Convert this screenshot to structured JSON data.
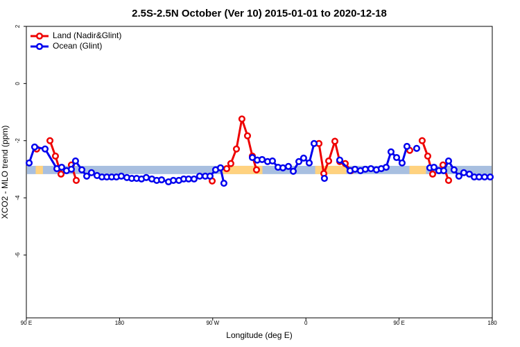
{
  "chart_data": {
    "type": "line",
    "title": "2.5S-2.5N October (Ver 10)   2015-01-01 to 2020-12-18",
    "x_label": "Longitude (deg E)",
    "y_label": "XCO2 - MLO trend (ppm)",
    "xlim": [
      90,
      540
    ],
    "xticks": [
      {
        "value": 90,
        "label": "90 E"
      },
      180,
      {
        "value": 270,
        "label": "90 W"
      },
      {
        "value": 360,
        "label": "0"
      },
      {
        "value": 450,
        "label": "90 E"
      },
      {
        "value": 540,
        "label": "180"
      }
    ],
    "ylim": [
      -8.2,
      2
    ],
    "yticks": [
      2,
      0,
      -2,
      -4,
      -6
    ],
    "legend": "top-left",
    "band": {
      "ylim": [
        -3.17,
        -2.88
      ],
      "ocean_color": "#a8bfe0",
      "land_color": "#ffd27f",
      "land_segments": [
        [
          99,
          106
        ],
        [
          279,
          318
        ],
        [
          369,
          399
        ],
        [
          460,
          476
        ]
      ]
    },
    "series": [
      {
        "name": "Land (Nadir&Glint)",
        "color": "#ee0000",
        "x": [
          100.0,
          null,
          112.8,
          118.1,
          123.5,
          null,
          133.5,
          138.2,
          null,
          269.5,
          null,
          283.5,
          287.5,
          292.9,
          298.2,
          303.6,
          308.3,
          312.3,
          null,
          372.6,
          377.3,
          382.0,
          388.0,
          392.7,
          398.0,
          403.4,
          null,
          460.3,
          null,
          472.3,
          477.7,
          482.4,
          null,
          492.4,
          497.8
        ],
        "values": [
          -2.29,
          null,
          -2.0,
          -2.54,
          -3.17,
          null,
          -2.85,
          -3.39,
          null,
          -3.41,
          null,
          -2.98,
          -2.8,
          -2.29,
          -1.24,
          -1.83,
          -2.54,
          -3.02,
          null,
          -2.1,
          -3.15,
          -2.71,
          -2.02,
          -2.73,
          -2.8,
          -3.05,
          null,
          -2.34,
          null,
          -2.0,
          -2.54,
          -3.17,
          null,
          -2.85,
          -3.39
        ]
      },
      {
        "name": "Ocean (Glint)",
        "color": "#0000ee",
        "x": [
          92.7,
          98.0,
          108.1,
          119.5,
          124.1,
          128.8,
          133.5,
          137.5,
          143.6,
          148.3,
          152.9,
          158.3,
          163.0,
          167.7,
          172.4,
          177.0,
          181.7,
          187.1,
          191.8,
          196.5,
          201.2,
          205.8,
          211.2,
          215.9,
          220.6,
          227.3,
          232.0,
          237.3,
          242.0,
          246.7,
          252.0,
          257.4,
          262.8,
          267.4,
          272.8,
          277.5,
          280.8,
          null,
          308.3,
          313.0,
          317.7,
          323.0,
          327.7,
          333.1,
          337.8,
          343.1,
          347.8,
          353.2,
          357.8,
          363.2,
          367.9,
          null,
          377.9,
          null,
          392.7,
          402.7,
          407.4,
          412.7,
          417.4,
          422.8,
          428.1,
          432.8,
          437.5,
          442.2,
          447.6,
          452.9,
          457.6,
          null,
          467.0,
          null,
          479.7,
          483.7,
          488.4,
          493.1,
          497.8,
          503.1,
          507.8,
          512.5,
          517.9,
          522.6,
          527.3,
          532.6,
          538.0
        ],
        "values": [
          -2.78,
          -2.22,
          -2.29,
          -2.98,
          -2.93,
          -3.05,
          -3.0,
          -2.71,
          -3.02,
          -3.24,
          -3.12,
          -3.22,
          -3.27,
          -3.27,
          -3.27,
          -3.27,
          -3.24,
          -3.29,
          -3.32,
          -3.32,
          -3.34,
          -3.29,
          -3.34,
          -3.39,
          -3.37,
          -3.44,
          -3.39,
          -3.39,
          -3.34,
          -3.34,
          -3.34,
          -3.24,
          -3.24,
          -3.24,
          -3.02,
          -2.95,
          -3.49,
          null,
          -2.59,
          -2.68,
          -2.66,
          -2.73,
          -2.71,
          -2.93,
          -2.95,
          -2.9,
          -3.07,
          -2.73,
          -2.61,
          -2.78,
          -2.1,
          null,
          -3.32,
          null,
          -2.68,
          -3.05,
          -3.0,
          -3.05,
          -3.0,
          -2.98,
          -3.02,
          -2.98,
          -2.93,
          -2.39,
          -2.59,
          -2.78,
          -2.2,
          null,
          -2.27,
          null,
          -2.95,
          -2.93,
          -3.05,
          -3.05,
          -2.71,
          -3.02,
          -3.24,
          -3.12,
          -3.17,
          -3.27,
          -3.27,
          -3.27,
          -3.27
        ]
      }
    ]
  }
}
